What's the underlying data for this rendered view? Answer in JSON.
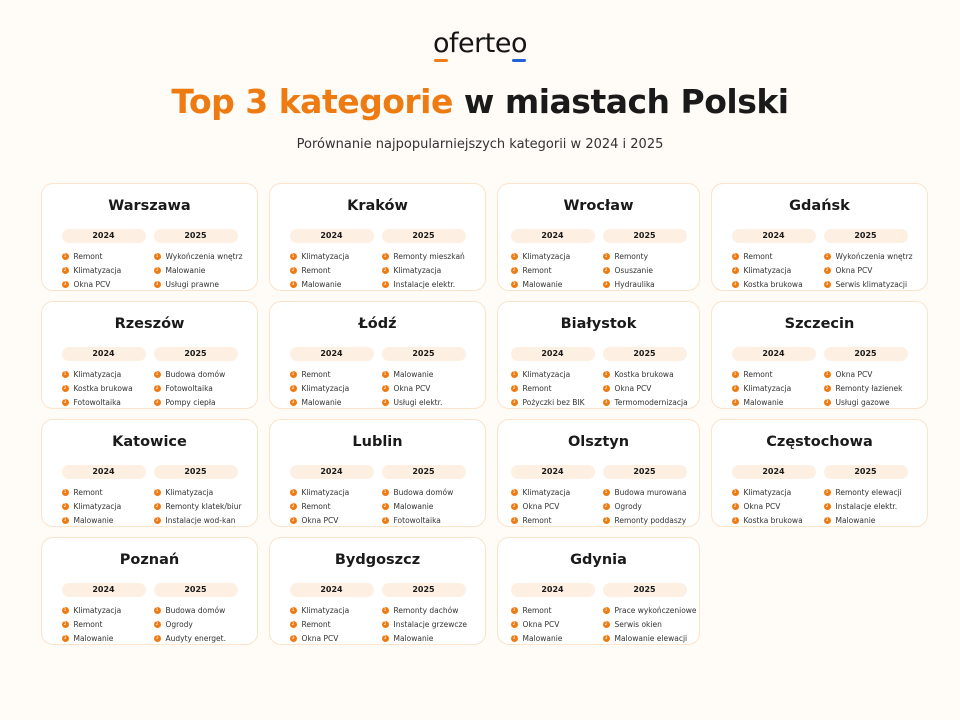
{
  "brand": {
    "logo": "oferteo",
    "accent_color": "#ee7a12",
    "blue_color": "#1f63d6"
  },
  "header": {
    "title_accent": "Top 3 kategorie",
    "title_rest": " w miastach Polski",
    "subtitle": "Porównanie najpopularniejszych kategorii w 2024 i 2025"
  },
  "years": [
    "2024",
    "2025"
  ],
  "cities": [
    {
      "name": "Warszawa",
      "y2024": [
        "Remont",
        "Klimatyzacja",
        "Okna PCV"
      ],
      "y2025": [
        "Wykończenia wnętrz",
        "Malowanie",
        "Usługi prawne"
      ]
    },
    {
      "name": "Kraków",
      "y2024": [
        "Klimatyzacja",
        "Remont",
        "Malowanie"
      ],
      "y2025": [
        "Remonty mieszkań",
        "Klimatyzacja",
        "Instalacje elektr."
      ]
    },
    {
      "name": "Wrocław",
      "y2024": [
        "Klimatyzacja",
        "Remont",
        "Malowanie"
      ],
      "y2025": [
        "Remonty",
        "Osuszanie",
        "Hydraulika"
      ]
    },
    {
      "name": "Gdańsk",
      "y2024": [
        "Remont",
        "Klimatyzacja",
        "Kostka brukowa"
      ],
      "y2025": [
        "Wykończenia wnętrz",
        "Okna PCV",
        "Serwis klimatyzacji"
      ]
    },
    {
      "name": "Rzeszów",
      "y2024": [
        "Klimatyzacja",
        "Kostka brukowa",
        "Fotowoltaika"
      ],
      "y2025": [
        "Budowa domów",
        "Fotowoltaika",
        "Pompy ciepła"
      ]
    },
    {
      "name": "Łódź",
      "y2024": [
        "Remont",
        "Klimatyzacja",
        "Malowanie"
      ],
      "y2025": [
        "Malowanie",
        "Okna PCV",
        "Usługi elektr."
      ]
    },
    {
      "name": "Białystok",
      "y2024": [
        "Klimatyzacja",
        "Remont",
        "Pożyczki bez BIK"
      ],
      "y2025": [
        "Kostka brukowa",
        "Okna PCV",
        "Termomodernizacja"
      ]
    },
    {
      "name": "Szczecin",
      "y2024": [
        "Remont",
        "Klimatyzacja",
        "Malowanie"
      ],
      "y2025": [
        "Okna PCV",
        "Remonty łazienek",
        "Usługi gazowe"
      ]
    },
    {
      "name": "Katowice",
      "y2024": [
        "Remont",
        "Klimatyzacja",
        "Malowanie"
      ],
      "y2025": [
        "Klimatyzacja",
        "Remonty klatek/biur",
        "Instalacje wod-kan"
      ]
    },
    {
      "name": "Lublin",
      "y2024": [
        "Klimatyzacja",
        "Remont",
        "Okna PCV"
      ],
      "y2025": [
        "Budowa domów",
        "Malowanie",
        "Fotowoltaika"
      ]
    },
    {
      "name": "Olsztyn",
      "y2024": [
        "Klimatyzacja",
        "Okna PCV",
        "Remont"
      ],
      "y2025": [
        "Budowa murowana",
        "Ogrody",
        "Remonty poddaszy"
      ]
    },
    {
      "name": "Częstochowa",
      "y2024": [
        "Klimatyzacja",
        "Okna PCV",
        "Kostka brukowa"
      ],
      "y2025": [
        "Remonty elewacji",
        "Instalacje elektr.",
        "Malowanie"
      ]
    },
    {
      "name": "Poznań",
      "y2024": [
        "Klimatyzacja",
        "Remont",
        "Malowanie"
      ],
      "y2025": [
        "Budowa domów",
        "Ogrody",
        "Audyty energet."
      ]
    },
    {
      "name": "Bydgoszcz",
      "y2024": [
        "Klimatyzacja",
        "Remont",
        "Okna PCV"
      ],
      "y2025": [
        "Remonty dachów",
        "Instalacje grzewcze",
        "Malowanie"
      ]
    },
    {
      "name": "Gdynia",
      "y2024": [
        "Remont",
        "Okna PCV",
        "Malowanie"
      ],
      "y2025": [
        "Prace wykończeniowe",
        "Serwis okien",
        "Malowanie elewacji"
      ]
    }
  ]
}
